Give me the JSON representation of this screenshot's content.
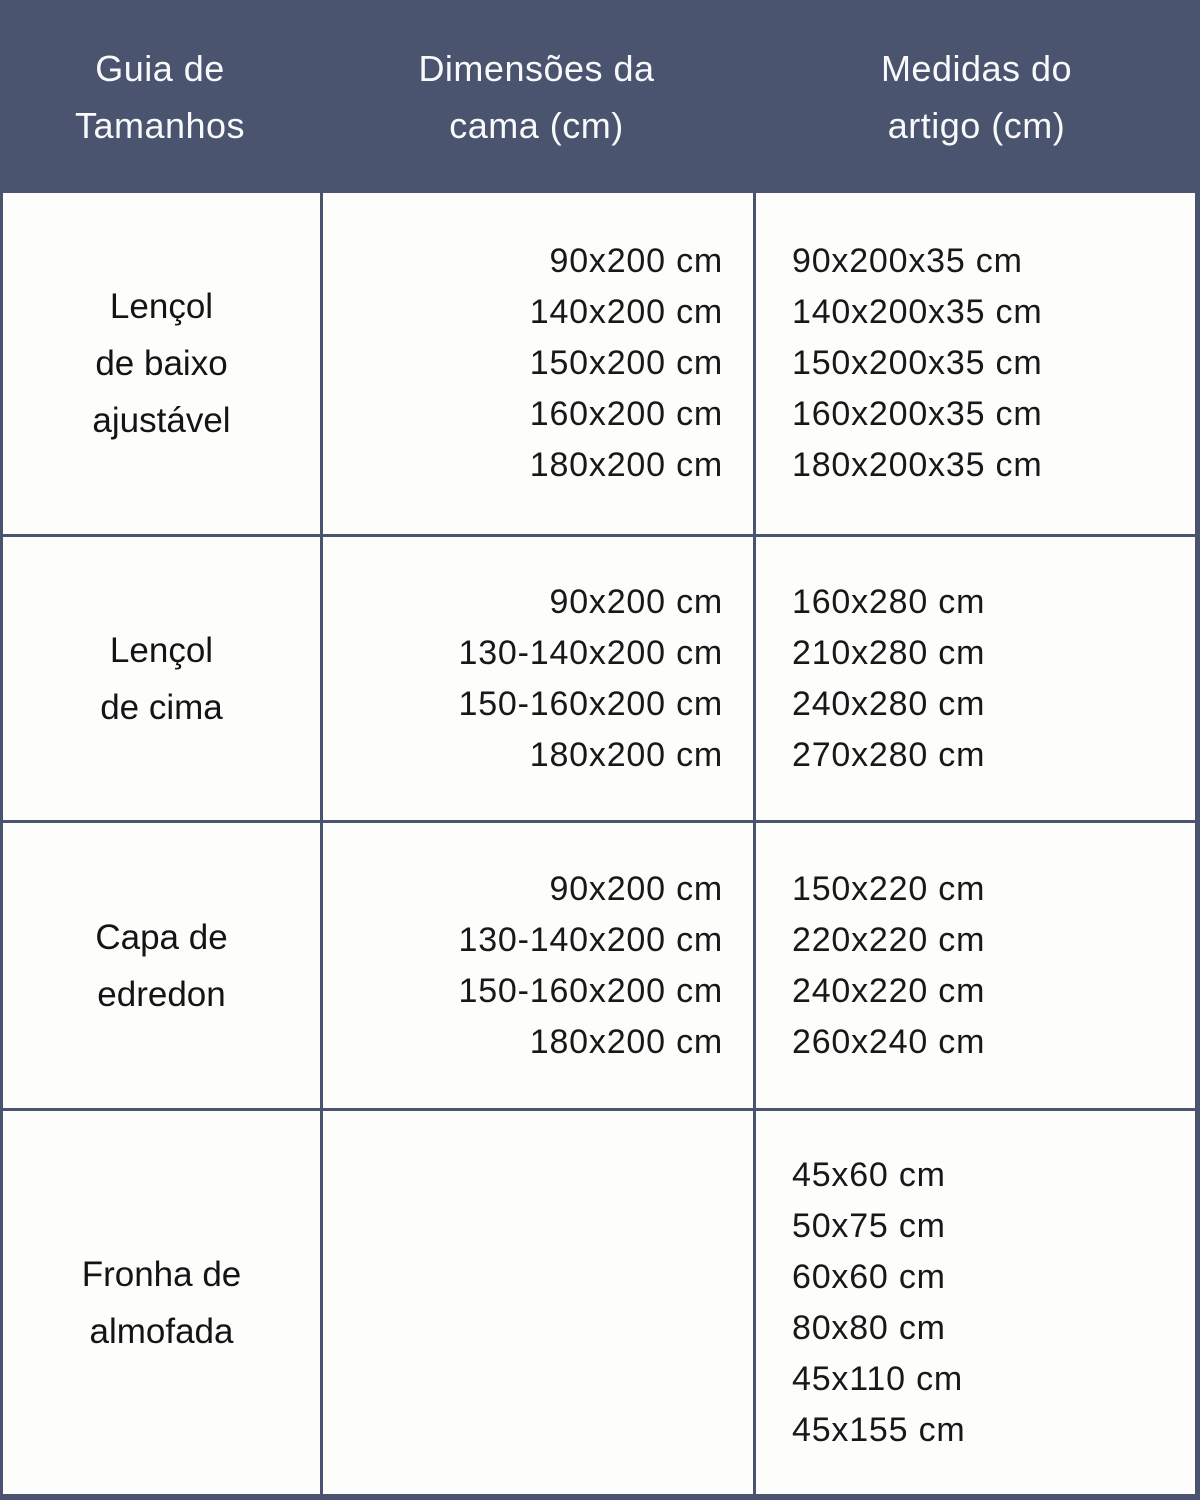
{
  "header": {
    "col1_lines": [
      "Guia de",
      "Tamanhos"
    ],
    "col2_lines": [
      "Dimensões da",
      "cama (cm)"
    ],
    "col3_lines": [
      "Medidas do",
      "artigo (cm)"
    ]
  },
  "rows": [
    {
      "name_lines": [
        "Lençol",
        "de baixo",
        "ajustável"
      ],
      "bed_sizes": [
        "90x200 cm",
        "140x200 cm",
        "150x200 cm",
        "160x200 cm",
        "180x200 cm"
      ],
      "article_sizes": [
        "90x200x35 cm",
        "140x200x35 cm",
        "150x200x35 cm",
        "160x200x35 cm",
        "180x200x35 cm"
      ]
    },
    {
      "name_lines": [
        "Lençol",
        "de cima"
      ],
      "bed_sizes": [
        "90x200 cm",
        "130-140x200 cm",
        "150-160x200 cm",
        "180x200 cm"
      ],
      "article_sizes": [
        "160x280 cm",
        "210x280 cm",
        "240x280 cm",
        "270x280 cm"
      ]
    },
    {
      "name_lines": [
        "Capa de",
        "edredon"
      ],
      "bed_sizes": [
        "90x200 cm",
        "130-140x200 cm",
        "150-160x200 cm",
        "180x200 cm"
      ],
      "article_sizes": [
        "150x220 cm",
        "220x220 cm",
        "240x220 cm",
        "260x240 cm"
      ]
    },
    {
      "name_lines": [
        "Fronha de",
        "almofada"
      ],
      "bed_sizes": [],
      "article_sizes": [
        "45x60 cm",
        "50x75 cm",
        "60x60 cm",
        "80x80 cm",
        "45x110 cm",
        "45x155 cm"
      ]
    }
  ],
  "colors": {
    "header_bg": "#4a546e",
    "border": "#4a546e",
    "cell_bg": "#fdfdfb",
    "header_text": "#f8f9fa",
    "body_text": "#181818"
  }
}
